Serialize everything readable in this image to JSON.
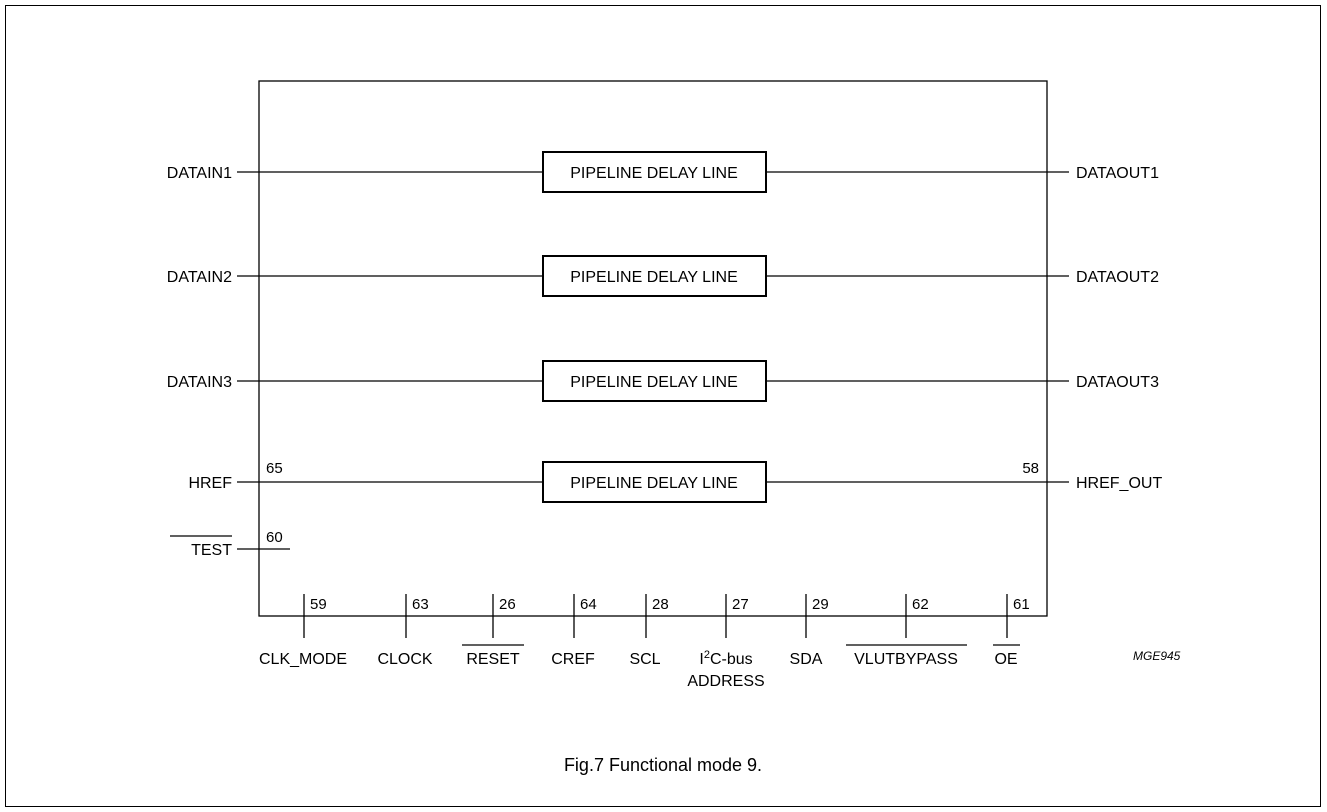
{
  "caption": "Fig.7  Functional mode 9.",
  "figure_ref": "MGE945",
  "block_label": "PIPELINE DELAY LINE",
  "left_signals": [
    "DATAIN1",
    "DATAIN2",
    "DATAIN3",
    "HREF"
  ],
  "right_signals": [
    "DATAOUT1",
    "DATAOUT2",
    "DATAOUT3",
    "HREF_OUT"
  ],
  "href_pins": {
    "in": "65",
    "out": "58"
  },
  "test_signal": {
    "name": "TEST",
    "pin": "60"
  },
  "bottom_pins": [
    {
      "pin": "59",
      "label": "CLK_MODE"
    },
    {
      "pin": "63",
      "label": "CLOCK"
    },
    {
      "pin": "26",
      "label": "RESET"
    },
    {
      "pin": "64",
      "label": "CREF"
    },
    {
      "pin": "28",
      "label": "SCL"
    },
    {
      "pin": "27",
      "label_main": "C-bus",
      "label_prefix": "I",
      "label_sup": "2",
      "label_line2": "ADDRESS"
    },
    {
      "pin": "29",
      "label": "SDA"
    },
    {
      "pin": "62",
      "label": "VLUTBYPASS"
    },
    {
      "pin": "61",
      "label": "OE"
    }
  ]
}
